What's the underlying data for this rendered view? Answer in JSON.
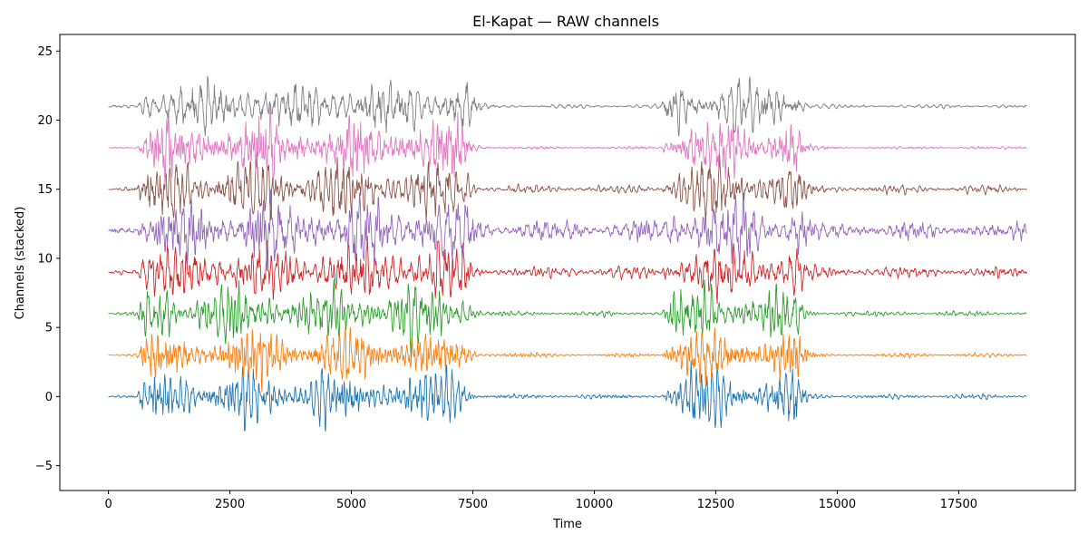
{
  "chart_data": {
    "type": "line",
    "title": "El-Kapat — RAW channels",
    "xlabel": "Time",
    "ylabel": "Channels (stacked)",
    "xlim": [
      -1000,
      19900
    ],
    "ylim": [
      -6.8,
      26.2
    ],
    "x_ticks": [
      0,
      2500,
      5000,
      7500,
      10000,
      12500,
      15000,
      17500
    ],
    "y_ticks": [
      -5,
      0,
      5,
      10,
      15,
      20,
      25
    ],
    "x_tick_labels": [
      "0",
      "2500",
      "5000",
      "7500",
      "10000",
      "12500",
      "15000",
      "17500"
    ],
    "y_tick_labels": [
      "−5",
      "0",
      "5",
      "10",
      "15",
      "20",
      "25"
    ],
    "grid": false,
    "x_range": [
      0,
      18900
    ],
    "segments": [
      {
        "start": 0,
        "end": 600,
        "level": "quiet"
      },
      {
        "start": 600,
        "end": 7400,
        "level": "burst"
      },
      {
        "start": 7400,
        "end": 11400,
        "level": "quiet"
      },
      {
        "start": 11400,
        "end": 14200,
        "level": "burst"
      },
      {
        "start": 14200,
        "end": 18900,
        "level": "quiet"
      }
    ],
    "series": [
      {
        "offset": 0,
        "color": "#1f77b4",
        "amplitude_quiet": 0.15,
        "amplitude_burst": 1.6,
        "seed": 11
      },
      {
        "offset": 3,
        "color": "#ff7f0e",
        "amplitude_quiet": 0.12,
        "amplitude_burst": 1.4,
        "seed": 23
      },
      {
        "offset": 6,
        "color": "#2ca02c",
        "amplitude_quiet": 0.15,
        "amplitude_burst": 1.6,
        "seed": 37
      },
      {
        "offset": 9,
        "color": "#d62728",
        "amplitude_quiet": 0.35,
        "amplitude_burst": 1.7,
        "seed": 41
      },
      {
        "offset": 12,
        "color": "#9467bd",
        "amplitude_quiet": 0.55,
        "amplitude_burst": 1.8,
        "seed": 53
      },
      {
        "offset": 15,
        "color": "#8c564b",
        "amplitude_quiet": 0.25,
        "amplitude_burst": 1.7,
        "seed": 67
      },
      {
        "offset": 18,
        "color": "#e377c2",
        "amplitude_quiet": 0.08,
        "amplitude_burst": 1.6,
        "seed": 79
      },
      {
        "offset": 21,
        "color": "#7f7f7f",
        "amplitude_quiet": 0.12,
        "amplitude_burst": 1.7,
        "seed": 83
      }
    ]
  }
}
